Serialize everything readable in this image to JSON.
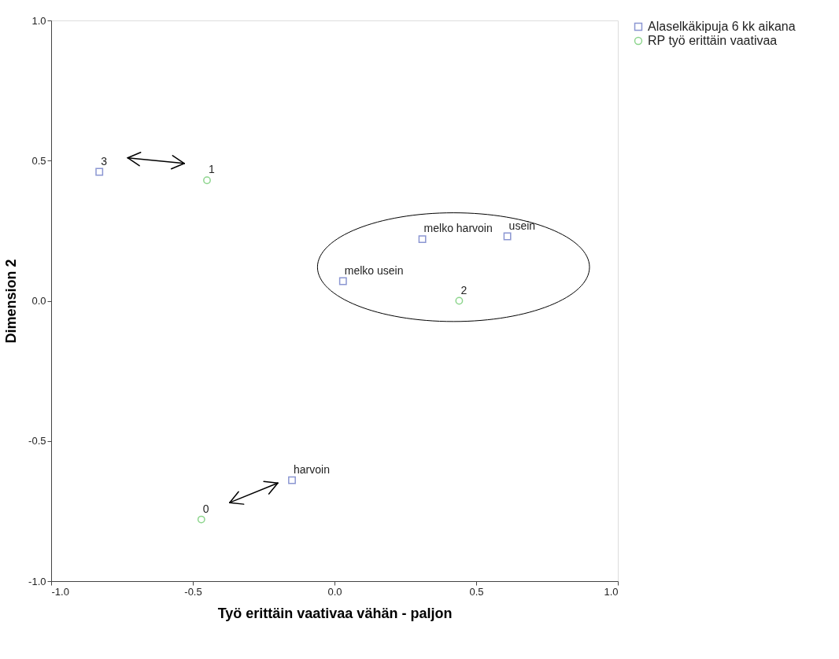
{
  "chart_data": {
    "type": "scatter",
    "xlabel": "Työ erittäin vaativaa vähän - paljon",
    "ylabel": "Dimension 2",
    "xlim": [
      -1.0,
      1.0
    ],
    "ylim": [
      -1.0,
      1.0
    ],
    "xticks": [
      {
        "value": -1.0,
        "label": "-1.0"
      },
      {
        "value": -0.5,
        "label": "-0.5"
      },
      {
        "value": 0.0,
        "label": "0.0"
      },
      {
        "value": 0.5,
        "label": "0.5"
      },
      {
        "value": 1.0,
        "label": "1.0"
      }
    ],
    "yticks": [
      {
        "value": -1.0,
        "label": "-1.0"
      },
      {
        "value": -0.5,
        "label": "-0.5"
      },
      {
        "value": 0.0,
        "label": "0.0"
      },
      {
        "value": 0.5,
        "label": "0.5"
      },
      {
        "value": 1.0,
        "label": "1.0"
      }
    ],
    "grid": false,
    "legend": "top right",
    "series": [
      {
        "name": "Alaselkäkipuja 6 kk aikana",
        "color": "#5b6bbf",
        "marker": "square",
        "x": [
          -0.83,
          0.31,
          0.61,
          0.03,
          -0.15
        ],
        "values": [
          0.46,
          0.22,
          0.23,
          0.07,
          -0.64
        ]
      },
      {
        "name": "RP työ erittäin vaativaa",
        "color": "#5ec45e",
        "marker": "circle",
        "x": [
          -0.45,
          0.44,
          -0.47
        ],
        "values": [
          0.43,
          0.0,
          -0.78
        ]
      }
    ],
    "annotations": [
      {
        "text": "3",
        "x": -0.83,
        "y": 0.46
      },
      {
        "text": "melko harvoin",
        "x": 0.31,
        "y": 0.22
      },
      {
        "text": "usein",
        "x": 0.61,
        "y": 0.23
      },
      {
        "text": "melko usein",
        "x": 0.03,
        "y": 0.07
      },
      {
        "text": "harvoin",
        "x": -0.15,
        "y": -0.64
      },
      {
        "text": "1",
        "x": -0.45,
        "y": 0.43
      },
      {
        "text": "2",
        "x": 0.44,
        "y": 0.0
      },
      {
        "text": "0",
        "x": -0.47,
        "y": -0.78
      }
    ]
  }
}
